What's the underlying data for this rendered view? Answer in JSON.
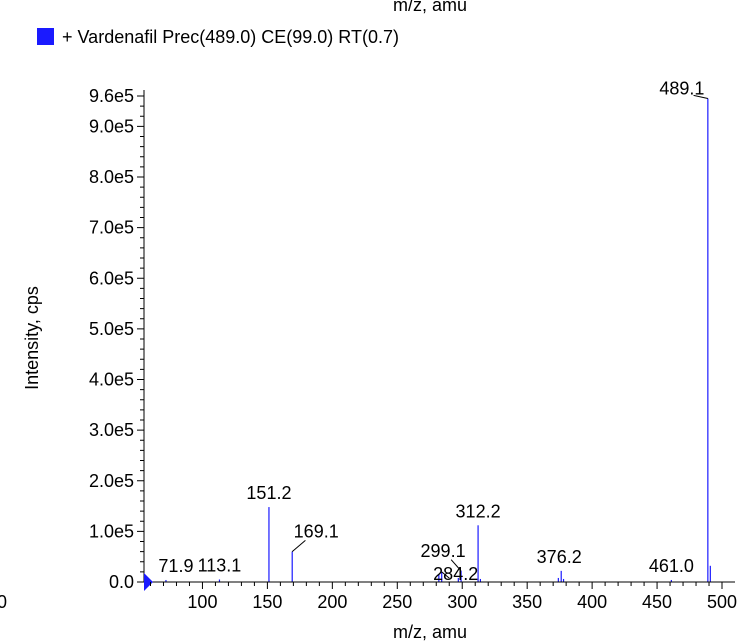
{
  "top_clipped_text": "m/z, amu",
  "legend": {
    "label": "+ Vardenafil Prec(489.0) CE(99.0) RT(0.7)",
    "swatch_color": "#1a1aff"
  },
  "colors": {
    "series": "#1a1aff",
    "axis": "#000000"
  },
  "chart_data": {
    "type": "bar",
    "xlabel": "m/z, amu",
    "ylabel": "Intensity, cps",
    "xlim": [
      55,
      510
    ],
    "ylim": [
      0,
      960000
    ],
    "x_ticks": [
      100,
      150,
      200,
      250,
      300,
      350,
      400,
      450,
      500
    ],
    "x_tick_labels": [
      "100",
      "150",
      "200",
      "250",
      "300",
      "350",
      "400",
      "450",
      "500"
    ],
    "left_edge_label": "0",
    "y_ticks": [
      0,
      100000,
      200000,
      300000,
      400000,
      500000,
      600000,
      700000,
      800000,
      900000,
      960000
    ],
    "y_tick_labels": [
      "0.0",
      "1.0e5",
      "2.0e5",
      "3.0e5",
      "4.0e5",
      "5.0e5",
      "6.0e5",
      "7.0e5",
      "8.0e5",
      "9.0e5",
      "9.6e5"
    ],
    "peaks": [
      {
        "x": 71.9,
        "y": 4000
      },
      {
        "x": 113.1,
        "y": 5000
      },
      {
        "x": 151.2,
        "y": 148000
      },
      {
        "x": 169.1,
        "y": 60000
      },
      {
        "x": 282.0,
        "y": 15000
      },
      {
        "x": 284.2,
        "y": 20000
      },
      {
        "x": 297.0,
        "y": 8000
      },
      {
        "x": 299.1,
        "y": 22000
      },
      {
        "x": 312.2,
        "y": 112000
      },
      {
        "x": 314.0,
        "y": 6000
      },
      {
        "x": 374.0,
        "y": 8000
      },
      {
        "x": 376.2,
        "y": 22000
      },
      {
        "x": 378.0,
        "y": 6000
      },
      {
        "x": 461.0,
        "y": 4000
      },
      {
        "x": 489.1,
        "y": 955000
      },
      {
        "x": 491.0,
        "y": 32000
      }
    ],
    "labels": [
      {
        "text": "71.9",
        "x": 71.9,
        "y": 4000
      },
      {
        "text": "113.1",
        "x": 113.1,
        "y": 5000
      },
      {
        "text": "151.2",
        "x": 151.2,
        "y": 148000
      },
      {
        "text": "169.1",
        "x": 169.1,
        "y": 60000
      },
      {
        "text": "299.1",
        "x": 299.1,
        "y": 22000
      },
      {
        "text": "284.2",
        "x": 284.2,
        "y": 20000
      },
      {
        "text": "312.2",
        "x": 312.2,
        "y": 112000
      },
      {
        "text": "376.2",
        "x": 376.2,
        "y": 22000
      },
      {
        "text": "461.0",
        "x": 461.0,
        "y": 4000
      },
      {
        "text": "489.1",
        "x": 489.1,
        "y": 955000
      }
    ]
  }
}
